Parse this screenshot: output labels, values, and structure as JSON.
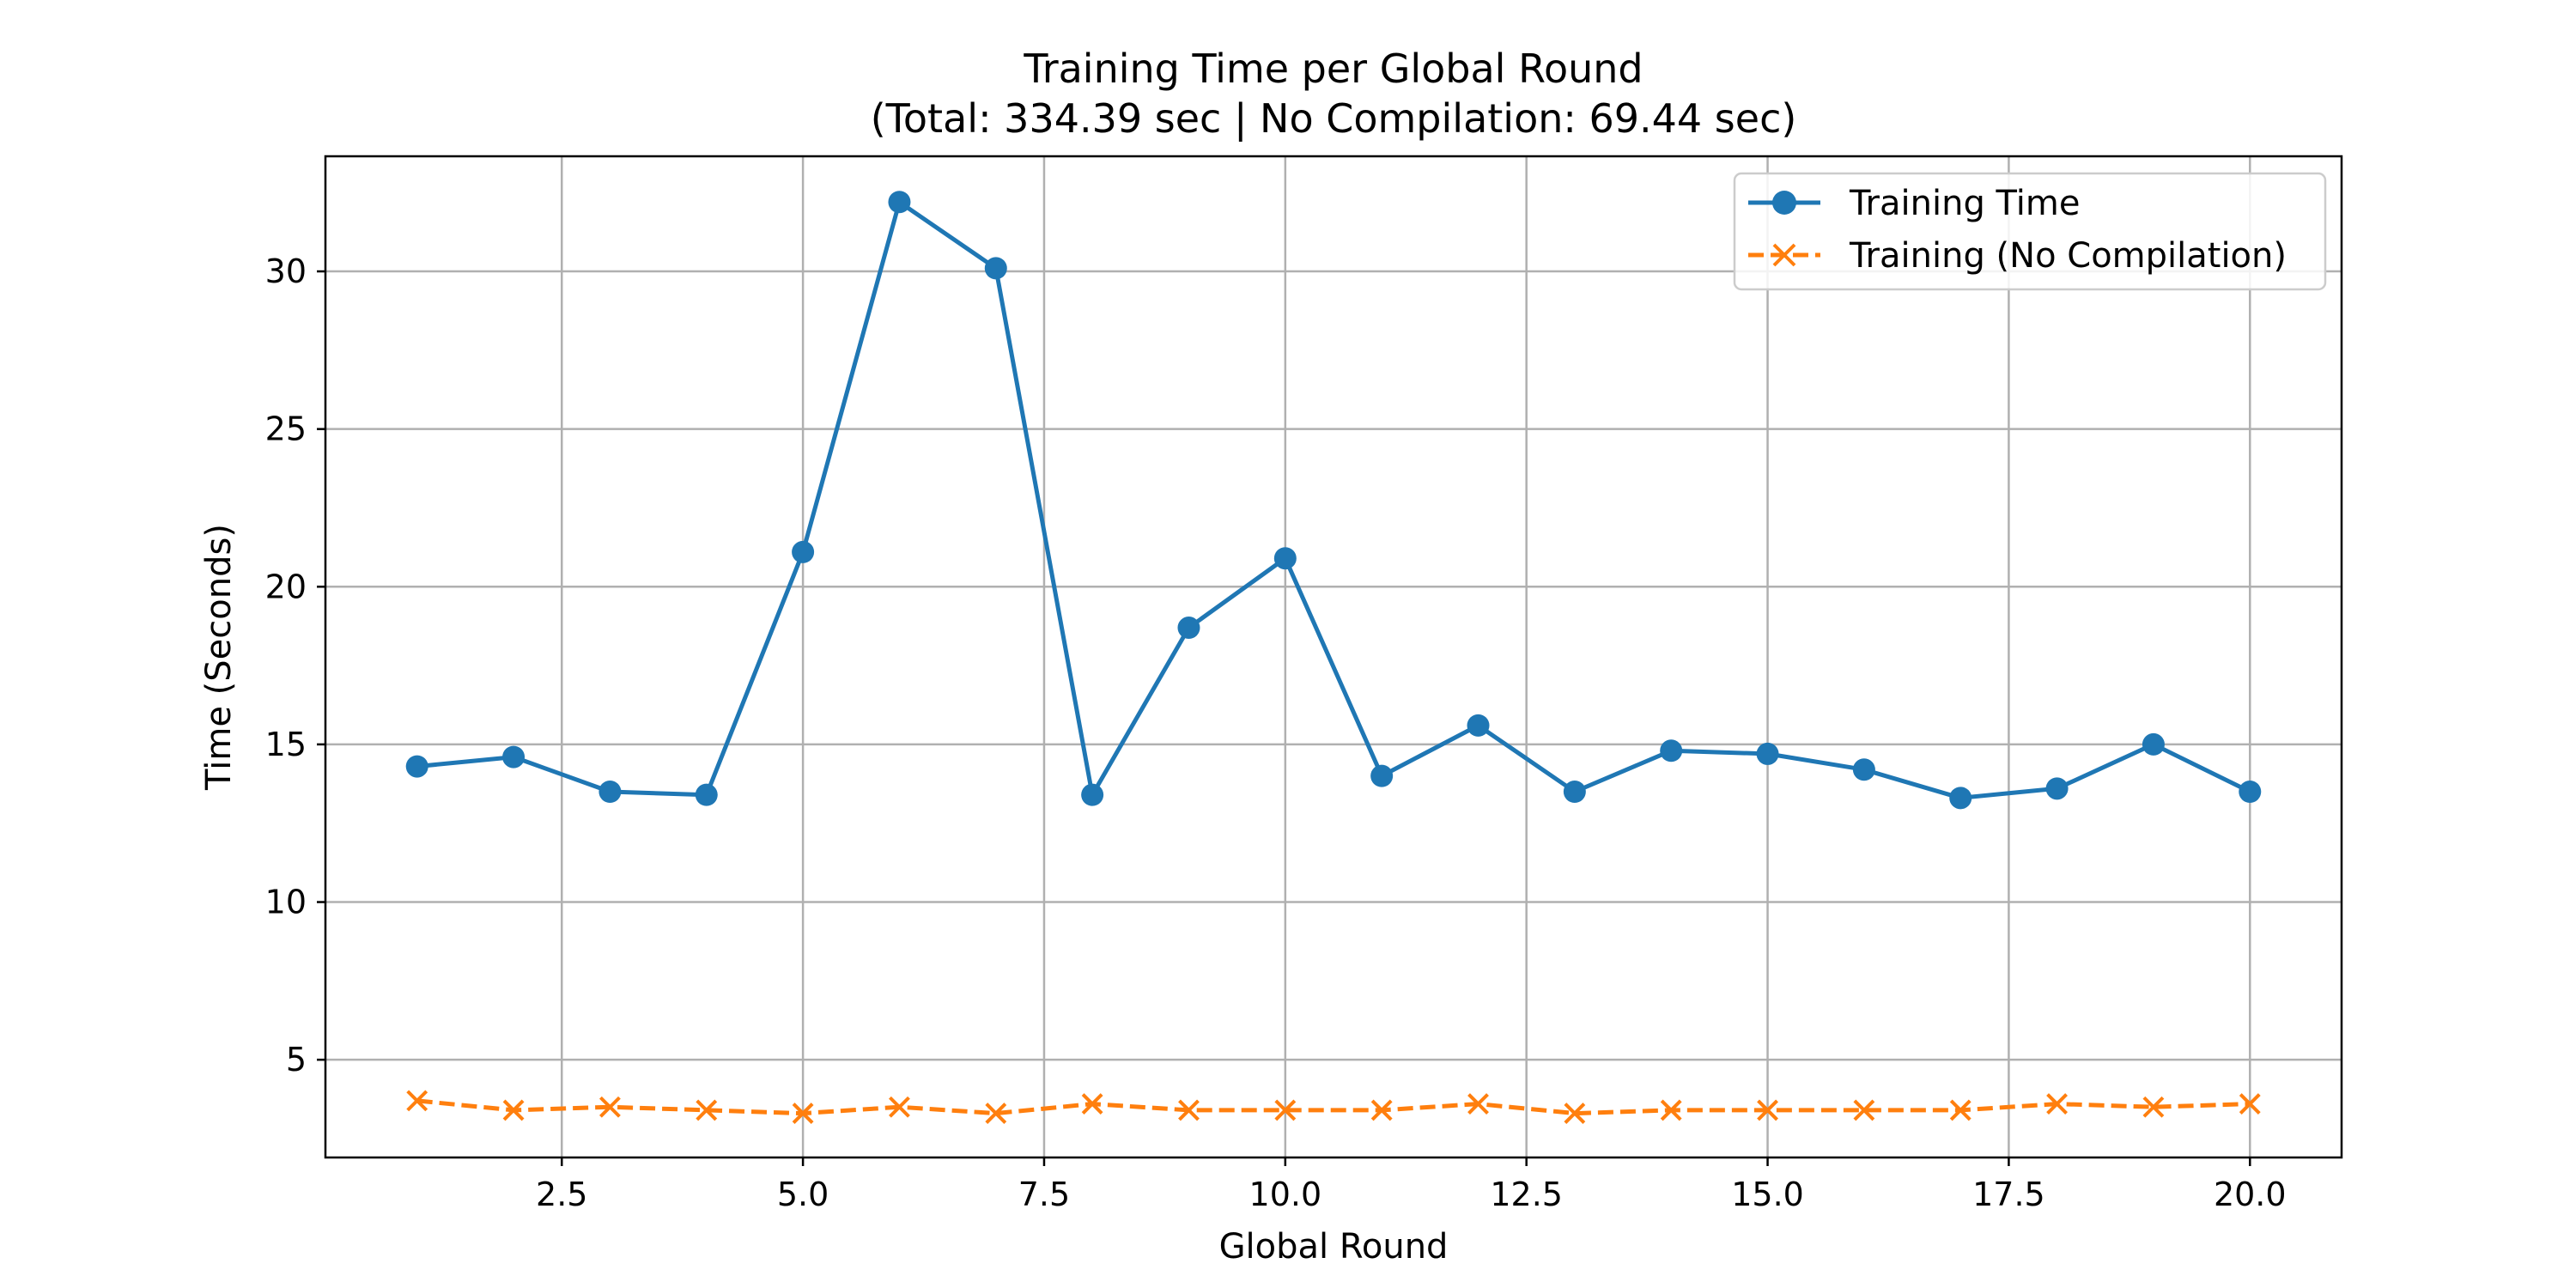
{
  "chart_data": {
    "type": "line",
    "title": "Training Time per Global Round",
    "subtitle": "(Total: 334.39 sec | No Compilation: 69.44 sec)",
    "xlabel": "Global Round",
    "ylabel": "Time (Seconds)",
    "xlim": [
      0.05,
      20.95
    ],
    "ylim": [
      1.9,
      33.65
    ],
    "xticks": [
      2.5,
      5.0,
      7.5,
      10.0,
      12.5,
      15.0,
      17.5,
      20.0
    ],
    "xtick_labels": [
      "2.5",
      "5.0",
      "7.5",
      "10.0",
      "12.5",
      "15.0",
      "17.5",
      "20.0"
    ],
    "yticks": [
      5,
      10,
      15,
      20,
      25,
      30
    ],
    "ytick_labels": [
      "5",
      "10",
      "15",
      "20",
      "25",
      "30"
    ],
    "grid": true,
    "legend_position": "top-right",
    "x": [
      1,
      2,
      3,
      4,
      5,
      6,
      7,
      8,
      9,
      10,
      11,
      12,
      13,
      14,
      15,
      16,
      17,
      18,
      19,
      20
    ],
    "series": [
      {
        "name": "Training Time",
        "color": "#1f77b4",
        "marker": "circle",
        "line_style": "solid",
        "values": [
          14.3,
          14.6,
          13.5,
          13.4,
          21.1,
          32.2,
          30.1,
          13.4,
          18.7,
          20.9,
          14.0,
          15.6,
          13.5,
          14.8,
          14.7,
          14.2,
          13.3,
          13.6,
          15.0,
          13.5
        ]
      },
      {
        "name": "Training (No Compilation)",
        "color": "#ff7f0e",
        "marker": "x",
        "line_style": "dashed",
        "values": [
          3.7,
          3.4,
          3.5,
          3.4,
          3.3,
          3.5,
          3.3,
          3.6,
          3.4,
          3.4,
          3.4,
          3.6,
          3.3,
          3.4,
          3.4,
          3.4,
          3.4,
          3.6,
          3.5,
          3.6
        ]
      }
    ]
  }
}
